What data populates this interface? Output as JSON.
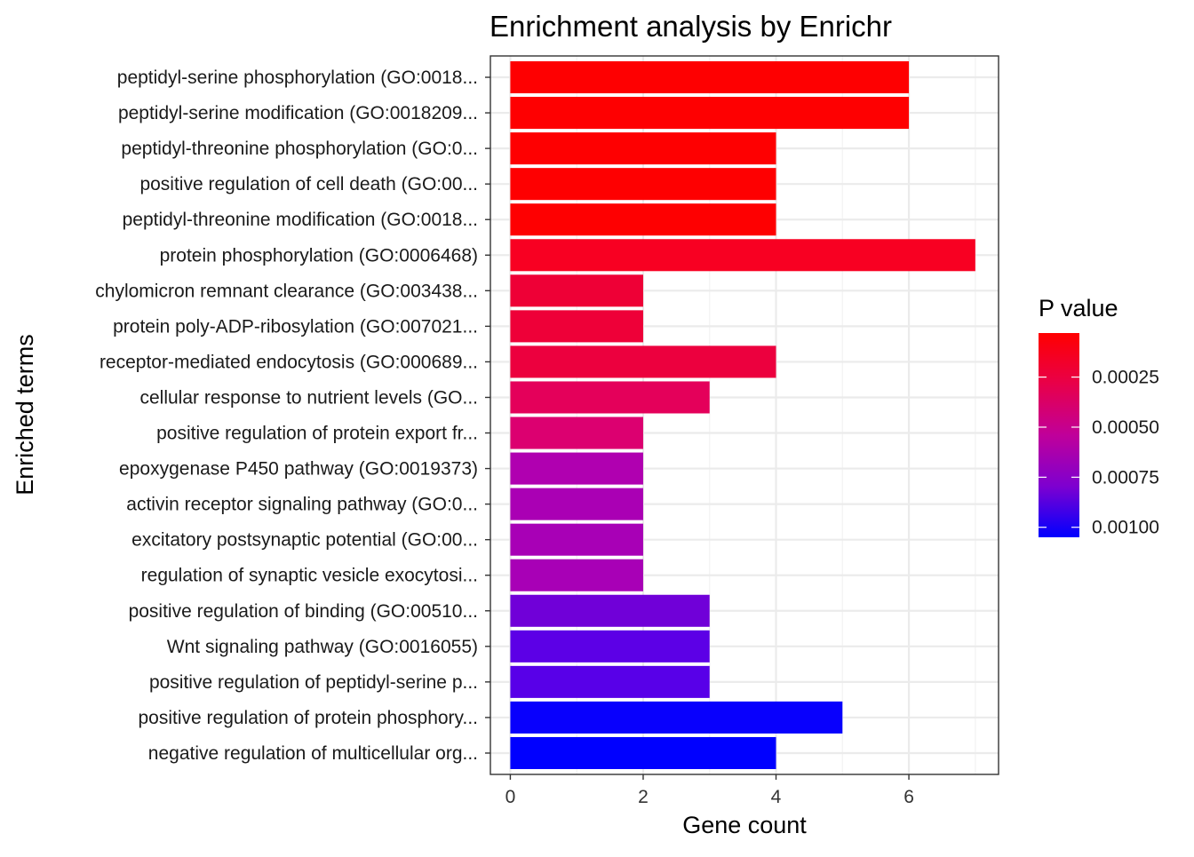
{
  "chart_data": {
    "type": "bar",
    "orientation": "horizontal",
    "title": "Enrichment analysis by Enrichr",
    "xlabel": "Gene count",
    "ylabel": "Enriched terms",
    "xlim": [
      -0.3,
      7.35
    ],
    "xticks": [
      0,
      2,
      4,
      6
    ],
    "grid": true,
    "categories": [
      "peptidyl-serine phosphorylation (GO:0018...",
      "peptidyl-serine modification (GO:0018209...",
      "peptidyl-threonine phosphorylation (GO:0...",
      "positive regulation of cell death (GO:00...",
      "peptidyl-threonine modification (GO:0018...",
      "protein phosphorylation (GO:0006468)",
      "chylomicron remnant clearance (GO:003438...",
      "protein poly-ADP-ribosylation (GO:007021...",
      "receptor-mediated endocytosis (GO:000689...",
      "cellular response to nutrient levels (GO...",
      "positive regulation of protein export fr...",
      "epoxygenase P450 pathway (GO:0019373)",
      "activin receptor signaling pathway (GO:0...",
      "excitatory postsynaptic potential (GO:00...",
      "regulation of synaptic vesicle exocytosi...",
      "positive regulation of binding (GO:00510...",
      "Wnt signaling pathway (GO:0016055)",
      "positive regulation of peptidyl-serine p...",
      "positive regulation of protein phosphory...",
      "negative regulation of multicellular org..."
    ],
    "values": [
      6,
      6,
      4,
      4,
      4,
      7,
      2,
      2,
      4,
      3,
      2,
      2,
      2,
      2,
      2,
      3,
      3,
      3,
      5,
      4
    ],
    "p_values": [
      3e-05,
      3e-05,
      4e-05,
      4e-05,
      4e-05,
      8e-05,
      0.00014,
      0.00015,
      0.00018,
      0.00024,
      0.00029,
      0.00058,
      0.0006,
      0.0006,
      0.0006,
      0.00078,
      0.00083,
      0.00085,
      0.00104,
      0.00104
    ],
    "colors": [
      "#fe0001",
      "#fe0001",
      "#fe0001",
      "#fe0001",
      "#fe0001",
      "#f80022",
      "#ee0036",
      "#ee0038",
      "#ec003e",
      "#e4005a",
      "#dc0070",
      "#b000b0",
      "#aa00b4",
      "#a800b6",
      "#a800b6",
      "#7000d8",
      "#5c00e6",
      "#5800e8",
      "#0800fd",
      "#0000ff"
    ],
    "legend": {
      "title": "P value",
      "position": "right",
      "type": "colorbar",
      "ticks": [
        "0.00025",
        "0.00050",
        "0.00075",
        "0.00100"
      ],
      "tick_values": [
        0.00025,
        0.0005,
        0.00075,
        0.001
      ],
      "range": [
        3e-05,
        0.00105
      ],
      "low_color": "#ff0000",
      "high_color": "#0000ff"
    }
  }
}
